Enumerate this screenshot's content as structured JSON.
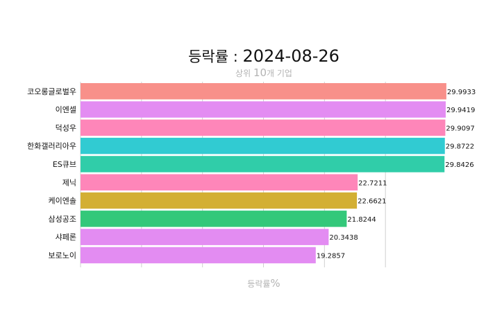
{
  "chart_data": {
    "type": "bar",
    "orientation": "horizontal",
    "title_prefix": "등락률 : ",
    "title_date": "2024-08-26",
    "subtitle_pre": "상위 ",
    "subtitle_num": "10",
    "subtitle_post": "개 기업",
    "xlabel_pre": "등락률",
    "xlabel_unit": "%",
    "xlim": [
      0,
      30
    ],
    "grid": true,
    "categories": [
      "코오롱글로벌우",
      "이엔셀",
      "덕성우",
      "한화갤러리아우",
      "ES큐브",
      "제닉",
      "케이엔솔",
      "삼성공조",
      "샤페론",
      "보로노이"
    ],
    "values": [
      29.9933,
      29.9419,
      29.9097,
      29.8722,
      29.8426,
      22.7211,
      22.6621,
      21.8244,
      20.3438,
      19.2857
    ],
    "value_labels": [
      "29.9933",
      "29.9419",
      "29.9097",
      "29.8722",
      "29.8426",
      "22.7211",
      "22.6621",
      "21.8244",
      "20.3438",
      "19.2857"
    ],
    "colors": [
      "#f8908a",
      "#e38cf2",
      "#fe86b9",
      "#31cbd2",
      "#30cda9",
      "#fe86b9",
      "#d3af33",
      "#33c87a",
      "#e38cf2",
      "#e38cf2"
    ]
  }
}
